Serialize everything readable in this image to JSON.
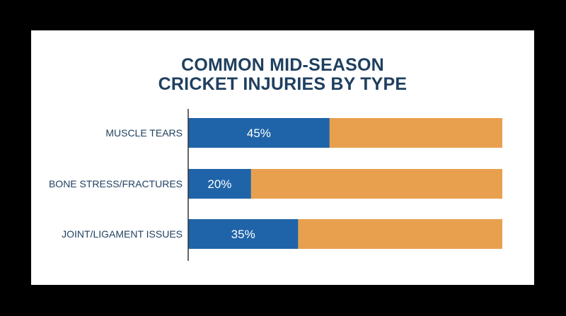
{
  "colors": {
    "background": "#000000",
    "card": "#ffffff",
    "title": "#1f3f5f",
    "value_fill": "#1f64a8",
    "remainder_fill": "#e8a04f",
    "axis": "#333333"
  },
  "chart_data": {
    "type": "bar",
    "orientation": "horizontal",
    "stacked_to_total": 100,
    "title_lines": [
      "COMMON MID-SEASON",
      "CRICKET INJURIES BY TYPE"
    ],
    "categories": [
      "MUSCLE TEARS",
      "BONE STRESS/FRACTURES",
      "JOINT/LIGAMENT ISSUES"
    ],
    "values": [
      45,
      20,
      35
    ],
    "value_labels": [
      "45%",
      "20%",
      "35%"
    ],
    "xlim": [
      0,
      100
    ],
    "grid": false,
    "legend": "none"
  }
}
